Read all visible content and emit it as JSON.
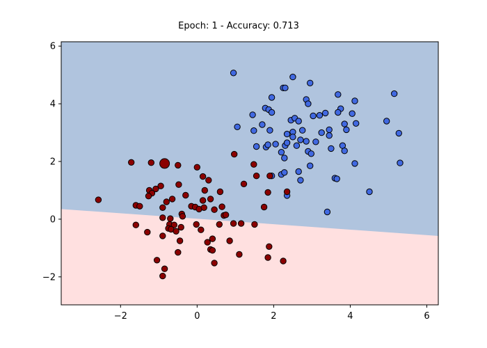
{
  "chart_data": {
    "type": "scatter",
    "title": "Epoch: 1 - Accuracy: 0.713",
    "xlabel": "",
    "ylabel": "",
    "xlim": [
      -3.55,
      6.3
    ],
    "ylim": [
      -2.97,
      6.15
    ],
    "x_ticks": [
      -2,
      0,
      2,
      4,
      6
    ],
    "y_ticks": [
      -2,
      0,
      2,
      4,
      6
    ],
    "x_tick_labels": [
      "−2",
      "0",
      "2",
      "4",
      "6"
    ],
    "y_tick_labels": [
      "−2",
      "0",
      "2",
      "4",
      "6"
    ],
    "grid": false,
    "decision_boundary": {
      "points": [
        [
          -3.55,
          0.35
        ],
        [
          6.3,
          -0.58
        ]
      ],
      "upper_region_color": "#b0c4de",
      "lower_region_color": "#ffe0e0"
    },
    "series": [
      {
        "color": "#4169e1",
        "edge_color": "#000000",
        "points": [
          [
            0.95,
            5.07
          ],
          [
            2.5,
            4.93
          ],
          [
            2.95,
            4.72
          ],
          [
            2.25,
            4.55
          ],
          [
            2.3,
            4.55
          ],
          [
            3.68,
            4.32
          ],
          [
            5.15,
            4.35
          ],
          [
            1.95,
            4.22
          ],
          [
            4.12,
            4.1
          ],
          [
            2.85,
            4.15
          ],
          [
            2.9,
            4.0
          ],
          [
            1.78,
            3.85
          ],
          [
            1.87,
            3.8
          ],
          [
            1.95,
            3.7
          ],
          [
            3.75,
            3.83
          ],
          [
            3.68,
            3.7
          ],
          [
            3.35,
            3.68
          ],
          [
            3.2,
            3.6
          ],
          [
            1.45,
            3.62
          ],
          [
            4.05,
            3.66
          ],
          [
            2.45,
            3.43
          ],
          [
            2.55,
            3.5
          ],
          [
            2.65,
            3.4
          ],
          [
            3.03,
            3.58
          ],
          [
            4.95,
            3.4
          ],
          [
            4.15,
            3.32
          ],
          [
            3.85,
            3.3
          ],
          [
            1.7,
            3.28
          ],
          [
            1.05,
            3.2
          ],
          [
            1.48,
            3.07
          ],
          [
            1.9,
            3.08
          ],
          [
            2.5,
            3.02
          ],
          [
            2.75,
            3.08
          ],
          [
            3.45,
            3.1
          ],
          [
            3.25,
            3.0
          ],
          [
            3.45,
            2.9
          ],
          [
            3.9,
            3.1
          ],
          [
            5.27,
            2.98
          ],
          [
            2.35,
            2.95
          ],
          [
            2.5,
            2.85
          ],
          [
            2.7,
            2.75
          ],
          [
            2.85,
            2.7
          ],
          [
            3.1,
            2.68
          ],
          [
            1.55,
            2.52
          ],
          [
            1.8,
            2.5
          ],
          [
            1.85,
            2.58
          ],
          [
            2.05,
            2.6
          ],
          [
            2.3,
            2.55
          ],
          [
            2.35,
            2.65
          ],
          [
            2.6,
            2.55
          ],
          [
            3.5,
            2.45
          ],
          [
            3.8,
            2.55
          ],
          [
            3.85,
            2.37
          ],
          [
            2.2,
            2.32
          ],
          [
            2.9,
            2.35
          ],
          [
            2.98,
            2.27
          ],
          [
            2.28,
            2.12
          ],
          [
            4.12,
            1.93
          ],
          [
            5.3,
            1.95
          ],
          [
            2.2,
            1.55
          ],
          [
            2.28,
            1.62
          ],
          [
            2.65,
            1.65
          ],
          [
            2.95,
            1.85
          ],
          [
            3.6,
            1.42
          ],
          [
            3.65,
            1.4
          ],
          [
            2.7,
            1.35
          ],
          [
            1.95,
            1.5
          ],
          [
            4.5,
            0.95
          ],
          [
            2.35,
            0.82
          ],
          [
            3.4,
            0.25
          ]
        ]
      },
      {
        "color": "#8b0000",
        "edge_color": "#000000",
        "highlight": {
          "x": -0.85,
          "y": 1.93
        },
        "points": [
          [
            0.97,
            2.25
          ],
          [
            -1.72,
            1.97
          ],
          [
            -1.2,
            1.96
          ],
          [
            -0.85,
            1.93
          ],
          [
            -0.5,
            1.87
          ],
          [
            0.0,
            1.8
          ],
          [
            1.48,
            1.9
          ],
          [
            1.55,
            1.5
          ],
          [
            1.9,
            1.5
          ],
          [
            0.15,
            1.48
          ],
          [
            0.3,
            1.35
          ],
          [
            -0.95,
            1.15
          ],
          [
            -1.08,
            1.05
          ],
          [
            -1.25,
            1.0
          ],
          [
            -1.18,
            0.9
          ],
          [
            -1.27,
            0.8
          ],
          [
            -0.48,
            1.2
          ],
          [
            0.2,
            1.0
          ],
          [
            0.6,
            0.95
          ],
          [
            1.22,
            1.22
          ],
          [
            1.85,
            0.93
          ],
          [
            2.35,
            0.95
          ],
          [
            -2.58,
            0.67
          ],
          [
            -0.8,
            0.6
          ],
          [
            -0.65,
            0.7
          ],
          [
            -0.3,
            0.83
          ],
          [
            0.15,
            0.65
          ],
          [
            0.35,
            0.7
          ],
          [
            -1.6,
            0.48
          ],
          [
            -1.5,
            0.45
          ],
          [
            -0.9,
            0.4
          ],
          [
            -0.15,
            0.45
          ],
          [
            -0.05,
            0.42
          ],
          [
            0.05,
            0.35
          ],
          [
            0.18,
            0.4
          ],
          [
            0.45,
            0.33
          ],
          [
            0.65,
            0.43
          ],
          [
            1.75,
            0.42
          ],
          [
            -0.4,
            0.18
          ],
          [
            -0.38,
            0.1
          ],
          [
            -0.9,
            0.05
          ],
          [
            -0.7,
            0.02
          ],
          [
            0.7,
            0.13
          ],
          [
            0.75,
            0.15
          ],
          [
            -1.6,
            -0.2
          ],
          [
            -0.72,
            -0.18
          ],
          [
            -0.6,
            -0.2
          ],
          [
            -0.42,
            -0.28
          ],
          [
            -0.02,
            -0.18
          ],
          [
            0.1,
            -0.37
          ],
          [
            0.58,
            -0.18
          ],
          [
            0.95,
            -0.15
          ],
          [
            1.15,
            -0.15
          ],
          [
            1.5,
            -0.18
          ],
          [
            -1.3,
            -0.45
          ],
          [
            -0.75,
            -0.32
          ],
          [
            -0.68,
            -0.35
          ],
          [
            -0.55,
            -0.42
          ],
          [
            -0.9,
            -0.58
          ],
          [
            0.27,
            -0.8
          ],
          [
            0.4,
            -0.68
          ],
          [
            -0.45,
            -0.75
          ],
          [
            0.85,
            -0.75
          ],
          [
            0.35,
            -1.05
          ],
          [
            0.4,
            -1.08
          ],
          [
            -0.5,
            -1.15
          ],
          [
            1.1,
            -1.22
          ],
          [
            1.88,
            -0.95
          ],
          [
            0.45,
            -1.52
          ],
          [
            -1.05,
            -1.42
          ],
          [
            1.85,
            -1.33
          ],
          [
            2.25,
            -1.45
          ],
          [
            -0.85,
            -1.72
          ],
          [
            -0.9,
            -1.97
          ]
        ]
      }
    ]
  }
}
